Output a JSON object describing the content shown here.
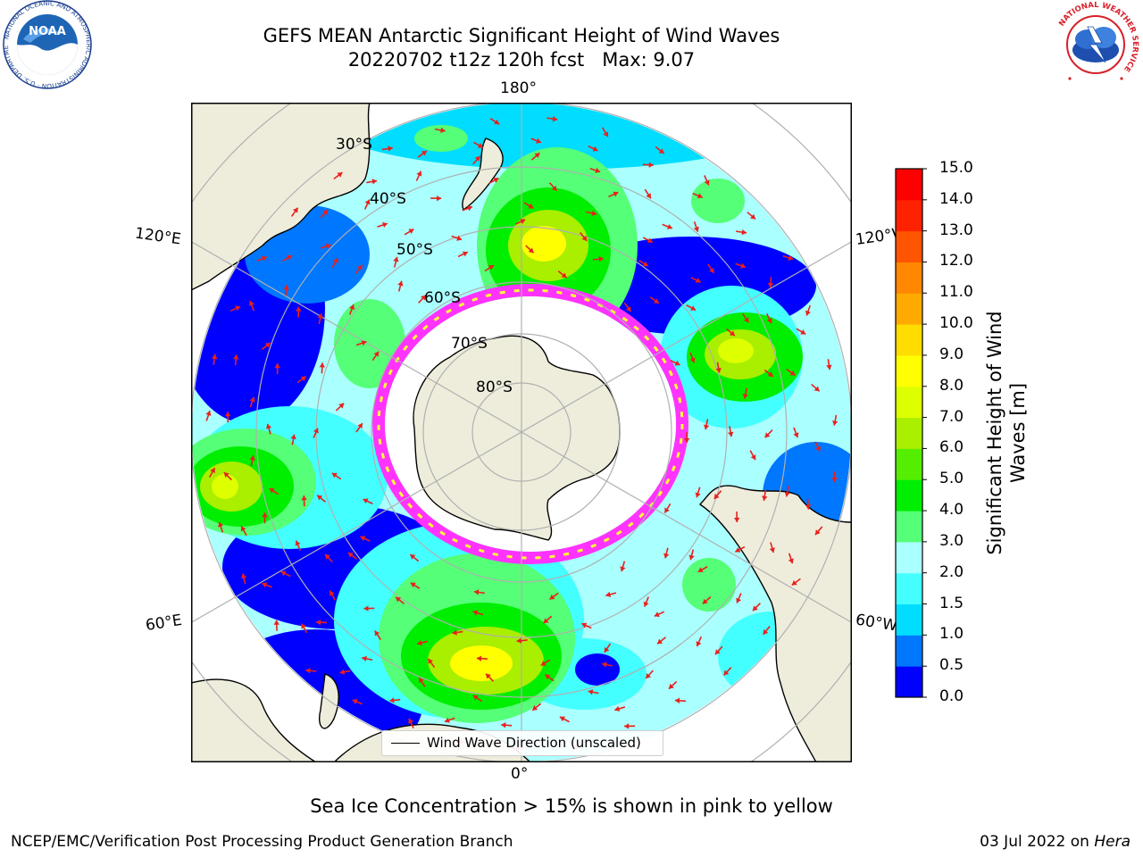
{
  "title": {
    "line1": "GEFS MEAN Antarctic Significant Height of Wind Waves",
    "line2": "20220702 t12z 120h fcst   Max: 9.07"
  },
  "logos": {
    "left": {
      "name": "noaa-logo",
      "text": "NOAA",
      "ring_text": "NATIONAL OCEANIC AND ATMOSPHERIC ADMINISTRATION · U.S. DEPARTMENT OF COMMERCE"
    },
    "right": {
      "name": "nws-logo",
      "ring_text": "NATIONAL WEATHER SERVICE"
    }
  },
  "map": {
    "projection": "south-polar-stereographic",
    "longitude_labels": {
      "top": "180°",
      "bottom": "0°",
      "upper_left": "120°E",
      "lower_left": "60°E",
      "upper_right": "120°W",
      "lower_right": "60°W"
    },
    "latitude_labels": [
      "30°S",
      "40°S",
      "50°S",
      "60°S",
      "70°S",
      "80°S"
    ],
    "legend": "Wind Wave Direction (unscaled)",
    "arrow_color": "#e8201c",
    "land_color": "#eeeddc",
    "sea_ice_colors": [
      "#ff33ff",
      "#ffff33"
    ],
    "wave_maxima": [
      {
        "region": "south-pacific",
        "value": 9.0
      },
      {
        "region": "south-indian-ocean",
        "value": 8.5
      },
      {
        "region": "south-atlantic",
        "value": 8.0
      }
    ]
  },
  "colorbar": {
    "label": "Significant Height of Wind Waves [m]",
    "label_line1": "Significant Height of Wind",
    "label_line2": "Waves [m]",
    "ticks": [
      "15.0",
      "14.0",
      "13.0",
      "12.0",
      "11.0",
      "10.0",
      "9.0",
      "8.0",
      "7.0",
      "6.0",
      "5.0",
      "4.0",
      "3.0",
      "2.0",
      "1.5",
      "1.0",
      "0.5",
      "0.0"
    ],
    "levels": [
      0.0,
      0.5,
      1.0,
      1.5,
      2.0,
      3.0,
      4.0,
      5.0,
      6.0,
      7.0,
      8.0,
      9.0,
      10.0,
      11.0,
      12.0,
      13.0,
      14.0,
      15.0
    ],
    "colors": [
      "#0000ff",
      "#0077ff",
      "#00ddff",
      "#44ffff",
      "#aaffff",
      "#55ff77",
      "#00ee00",
      "#55ee00",
      "#aaee00",
      "#ddff00",
      "#ffff00",
      "#ffdd00",
      "#ffaa00",
      "#ff8800",
      "#ff5500",
      "#ff2200",
      "#ff0000"
    ]
  },
  "note": "Sea Ice Concentration > 15% is shown in pink to yellow",
  "footer": {
    "left": "NCEP/EMC/Verification Post Processing Product Generation Branch",
    "right_prefix": "03 Jul 2022 on ",
    "right_host": "Hera"
  }
}
